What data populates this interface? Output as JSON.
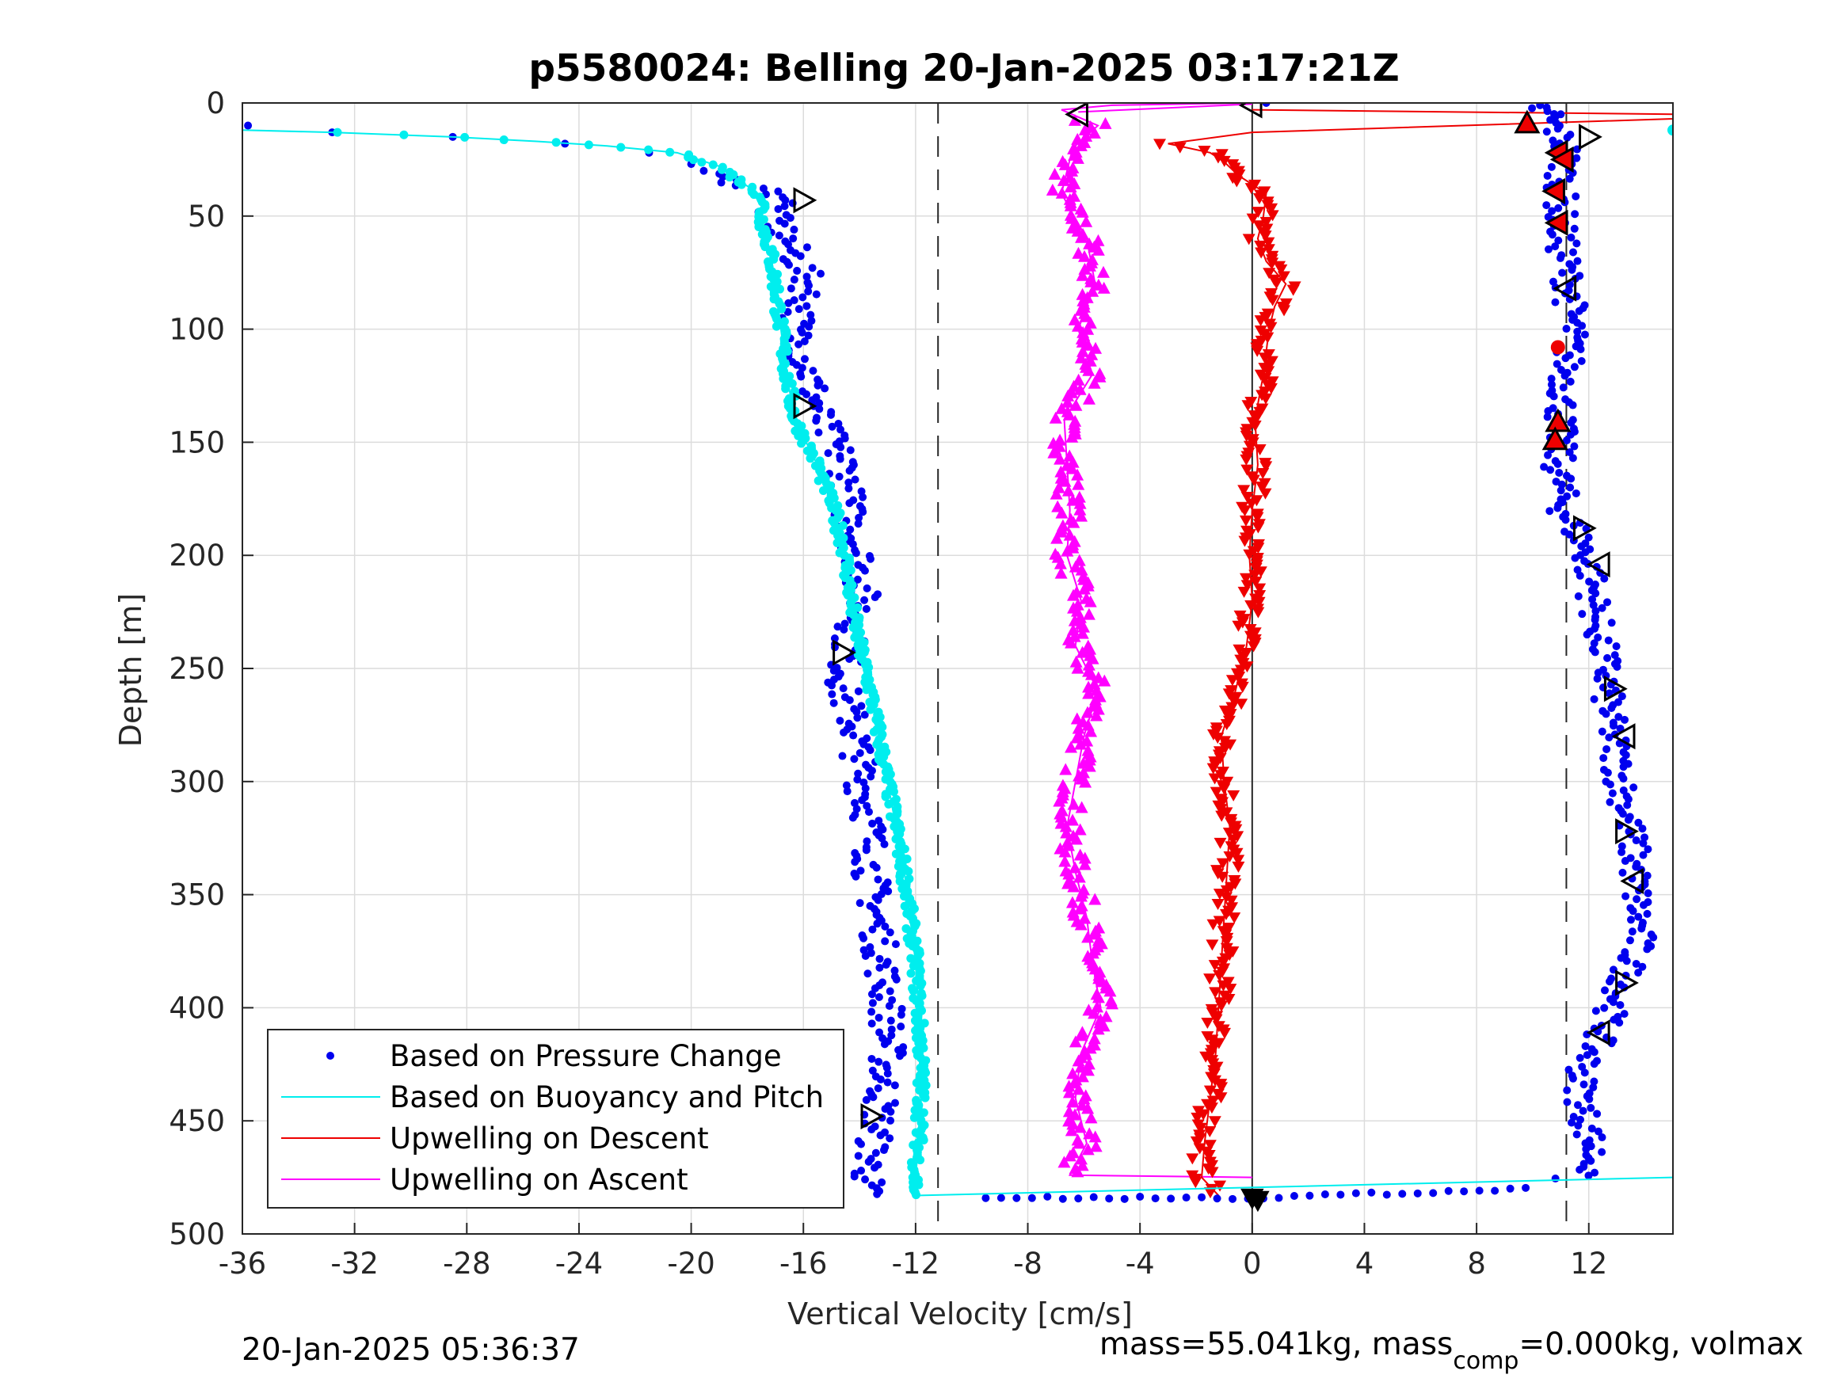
{
  "chart_data": {
    "type": "scatter",
    "title": "p5580024: Belling 20-Jan-2025 03:17:21Z",
    "xlabel": "Vertical Velocity [cm/s]",
    "ylabel": "Depth [m]",
    "xlim": [
      -36,
      15
    ],
    "ylim": [
      0,
      500
    ],
    "y_reversed": true,
    "xticks": [
      -36,
      -32,
      -28,
      -24,
      -20,
      -16,
      -12,
      -8,
      -4,
      0,
      4,
      8,
      12
    ],
    "yticks": [
      0,
      50,
      100,
      150,
      200,
      250,
      300,
      350,
      400,
      450,
      500
    ],
    "xtick_labels": [
      "-36",
      "-32",
      "-28",
      "-24",
      "-20",
      "-16",
      "-12",
      "-8",
      "-4",
      "0",
      "4",
      "8",
      "12"
    ],
    "ytick_labels": [
      "0",
      "50",
      "100",
      "150",
      "200",
      "250",
      "300",
      "350",
      "400",
      "450",
      "500"
    ],
    "grid": true,
    "legend_position": "bottom-left",
    "reference_lines": [
      -11.2,
      11.2
    ],
    "series": [
      {
        "name": "Based on Pressure Change",
        "style": "dots",
        "color": "#0000ee",
        "profile": [
          [
            0,
            0.5
          ],
          [
            2,
            10.5
          ],
          [
            5,
            11.0
          ],
          [
            10,
            -35.8
          ],
          [
            13,
            -32.8
          ],
          [
            15,
            -28.5
          ],
          [
            18,
            -24.5
          ],
          [
            22,
            -21.5
          ],
          [
            27,
            -20.0
          ],
          [
            32,
            -19.3
          ],
          [
            38,
            -17.5
          ],
          [
            42,
            -16.4
          ],
          [
            48,
            -17.2
          ],
          [
            60,
            -16.6
          ],
          [
            80,
            -15.8
          ],
          [
            100,
            -16.3
          ],
          [
            120,
            -15.8
          ],
          [
            140,
            -15.4
          ],
          [
            160,
            -14.5
          ],
          [
            180,
            -14.4
          ],
          [
            200,
            -14.0
          ],
          [
            220,
            -13.9
          ],
          [
            240,
            -14.4
          ],
          [
            260,
            -14.6
          ],
          [
            280,
            -14.1
          ],
          [
            300,
            -13.9
          ],
          [
            320,
            -13.6
          ],
          [
            340,
            -13.6
          ],
          [
            360,
            -13.4
          ],
          [
            380,
            -13.2
          ],
          [
            400,
            -13.0
          ],
          [
            420,
            -13.0
          ],
          [
            440,
            -13.2
          ],
          [
            460,
            -13.5
          ],
          [
            475,
            -13.7
          ],
          [
            482,
            -13.8
          ]
        ],
        "ascent_profile": [
          [
            484,
            -9.5
          ],
          [
            484,
            0
          ],
          [
            484,
            3
          ],
          [
            483,
            6
          ],
          [
            481,
            9
          ],
          [
            478,
            10.8
          ],
          [
            470,
            12.2
          ],
          [
            460,
            12.1
          ],
          [
            445,
            11.8
          ],
          [
            430,
            11.7
          ],
          [
            410,
            12.5
          ],
          [
            390,
            13.2
          ],
          [
            370,
            13.8
          ],
          [
            350,
            13.7
          ],
          [
            330,
            13.6
          ],
          [
            310,
            13.3
          ],
          [
            290,
            13.0
          ],
          [
            270,
            12.7
          ],
          [
            250,
            12.6
          ],
          [
            230,
            12.3
          ],
          [
            210,
            12.1
          ],
          [
            195,
            11.8
          ],
          [
            180,
            11.1
          ],
          [
            160,
            10.9
          ],
          [
            140,
            11.0
          ],
          [
            120,
            11.2
          ],
          [
            100,
            11.4
          ],
          [
            80,
            11.3
          ],
          [
            60,
            11.0
          ],
          [
            40,
            11.0
          ],
          [
            20,
            11.2
          ],
          [
            5,
            10.5
          ],
          [
            1,
            10.0
          ]
        ]
      },
      {
        "name": "Based on Buoyancy and Pitch",
        "style": "line+dots",
        "color": "#00eeee",
        "profile": [
          [
            12,
            -36.0
          ],
          [
            13,
            -32.8
          ],
          [
            15,
            -28.5
          ],
          [
            17,
            -25.5
          ],
          [
            19,
            -23.0
          ],
          [
            22,
            -20.5
          ],
          [
            28,
            -19.0
          ],
          [
            35,
            -18.2
          ],
          [
            42,
            -17.4
          ],
          [
            50,
            -17.5
          ],
          [
            65,
            -17.2
          ],
          [
            80,
            -17.0
          ],
          [
            100,
            -16.8
          ],
          [
            120,
            -16.6
          ],
          [
            140,
            -16.3
          ],
          [
            160,
            -15.5
          ],
          [
            180,
            -14.9
          ],
          [
            200,
            -14.5
          ],
          [
            220,
            -14.3
          ],
          [
            240,
            -14.0
          ],
          [
            260,
            -13.6
          ],
          [
            280,
            -13.3
          ],
          [
            300,
            -13.0
          ],
          [
            320,
            -12.7
          ],
          [
            340,
            -12.4
          ],
          [
            360,
            -12.2
          ],
          [
            380,
            -12.0
          ],
          [
            400,
            -11.9
          ],
          [
            420,
            -11.8
          ],
          [
            440,
            -11.8
          ],
          [
            460,
            -11.9
          ],
          [
            475,
            -12.0
          ],
          [
            483,
            -12.0
          ]
        ],
        "end_line": [
          [
            483,
            -12.0
          ],
          [
            475,
            15
          ]
        ]
      },
      {
        "name": "Upwelling on Descent",
        "style": "line+down-triangles",
        "color": "#ee0000",
        "profile": [
          [
            5,
            15
          ],
          [
            7,
            15
          ],
          [
            13,
            0
          ],
          [
            18,
            -3.0
          ],
          [
            22,
            -1.5
          ],
          [
            26,
            -1.0
          ],
          [
            32,
            -0.5
          ],
          [
            40,
            0.5
          ],
          [
            50,
            0.4
          ],
          [
            60,
            0.2
          ],
          [
            70,
            0.5
          ],
          [
            80,
            1.2
          ],
          [
            90,
            0.8
          ],
          [
            100,
            0.6
          ],
          [
            120,
            0.4
          ],
          [
            140,
            0.1
          ],
          [
            160,
            0.2
          ],
          [
            180,
            0.0
          ],
          [
            200,
            -0.1
          ],
          [
            220,
            0.0
          ],
          [
            240,
            -0.2
          ],
          [
            250,
            -0.4
          ],
          [
            260,
            -0.6
          ],
          [
            280,
            -1.1
          ],
          [
            300,
            -1.0
          ],
          [
            320,
            -0.8
          ],
          [
            340,
            -0.9
          ],
          [
            360,
            -1.0
          ],
          [
            380,
            -1.1
          ],
          [
            400,
            -1.2
          ],
          [
            420,
            -1.3
          ],
          [
            440,
            -1.5
          ],
          [
            460,
            -1.7
          ],
          [
            475,
            -1.8
          ],
          [
            483,
            -1.2
          ]
        ]
      },
      {
        "name": "Upwelling on Ascent",
        "style": "line+up-triangles",
        "color": "#ff00ff",
        "profile": [
          [
            475,
            0
          ],
          [
            474,
            -6.5
          ],
          [
            460,
            -5.9
          ],
          [
            440,
            -6.3
          ],
          [
            420,
            -6.1
          ],
          [
            400,
            -5.4
          ],
          [
            380,
            -5.7
          ],
          [
            360,
            -5.9
          ],
          [
            340,
            -6.3
          ],
          [
            320,
            -6.6
          ],
          [
            300,
            -6.3
          ],
          [
            280,
            -6.0
          ],
          [
            260,
            -5.5
          ],
          [
            240,
            -6.3
          ],
          [
            220,
            -6.1
          ],
          [
            200,
            -6.6
          ],
          [
            180,
            -6.5
          ],
          [
            160,
            -6.6
          ],
          [
            140,
            -6.7
          ],
          [
            120,
            -5.7
          ],
          [
            100,
            -6.2
          ],
          [
            80,
            -5.6
          ],
          [
            60,
            -5.9
          ],
          [
            40,
            -6.8
          ],
          [
            20,
            -6.4
          ],
          [
            10,
            -5.5
          ],
          [
            3,
            -6.8
          ],
          [
            1,
            -5.0
          ],
          [
            0,
            0
          ]
        ]
      }
    ],
    "markers": {
      "open_triangles_descent": [
        [
          43,
          -16.0
        ],
        [
          134,
          -16.0
        ],
        [
          243,
          -14.6
        ],
        [
          448,
          -13.6
        ]
      ],
      "open_triangles_surface": [
        [
          4,
          -6.2
        ],
        [
          0,
          0
        ]
      ],
      "open_triangles_ascent": [
        [
          15,
          12.0
        ],
        [
          82,
          11.2
        ],
        [
          188,
          11.8
        ],
        [
          204,
          12.4
        ],
        [
          259,
          12.9
        ],
        [
          280,
          13.3
        ],
        [
          322,
          13.3
        ],
        [
          344,
          13.6
        ],
        [
          389,
          13.3
        ],
        [
          411,
          12.4
        ]
      ],
      "red_triangles_ascent": [
        [
          9,
          9.8
        ],
        [
          22,
          10.9
        ],
        [
          25,
          11.1
        ],
        [
          39,
          10.8
        ],
        [
          53,
          10.9
        ],
        [
          108,
          10.9
        ],
        [
          141,
          10.9
        ],
        [
          149,
          10.8
        ]
      ],
      "bottom_markers": [
        [
          484,
          0
        ],
        [
          485,
          0.2
        ]
      ]
    }
  },
  "footer": {
    "timestamp": "20-Jan-2025 05:36:37",
    "mass_text": "mass=55.041kg, mass",
    "mass_subscript": "comp",
    "mass_tail": "=0.000kg, volmax"
  }
}
